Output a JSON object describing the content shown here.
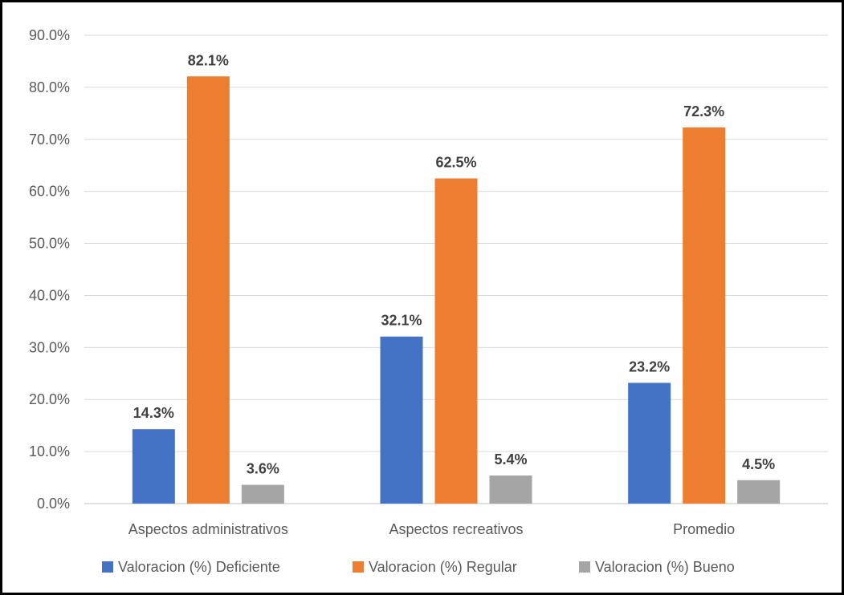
{
  "chart_data": {
    "type": "bar",
    "categories": [
      "Aspectos administrativos",
      "Aspectos recreativos",
      "Promedio"
    ],
    "series": [
      {
        "name": "Valoracion (%) Deficiente",
        "values": [
          14.3,
          32.1,
          23.2
        ],
        "color": "#4472c4",
        "labels": [
          "14.3%",
          "32.1%",
          "23.2%"
        ]
      },
      {
        "name": "Valoracion (%) Regular",
        "values": [
          82.1,
          62.5,
          72.3
        ],
        "color": "#ed7d31",
        "labels": [
          "82.1%",
          "62.5%",
          "72.3%"
        ]
      },
      {
        "name": "Valoracion (%) Bueno",
        "values": [
          3.6,
          5.4,
          4.5
        ],
        "color": "#a5a5a5",
        "labels": [
          "3.6%",
          "5.4%",
          "4.5%"
        ]
      }
    ],
    "ylim": [
      0,
      90
    ],
    "yticks": [
      0,
      10,
      20,
      30,
      40,
      50,
      60,
      70,
      80,
      90
    ],
    "ytick_labels": [
      "0.0%",
      "10.0%",
      "20.0%",
      "30.0%",
      "40.0%",
      "50.0%",
      "60.0%",
      "70.0%",
      "80.0%",
      "90.0%"
    ],
    "grid": true,
    "legend": "bottom"
  }
}
